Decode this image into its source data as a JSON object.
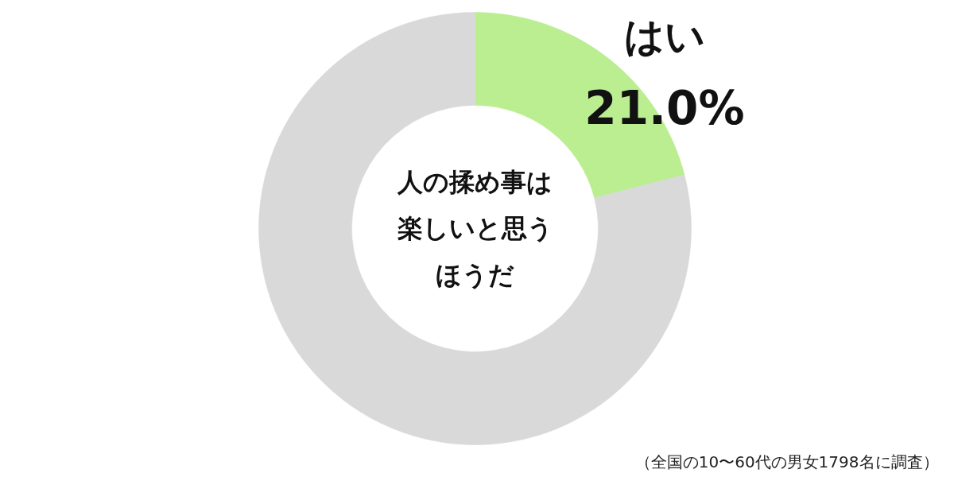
{
  "chart_data": {
    "type": "donut",
    "title": "人の揉め事は楽しいと思うほうだ",
    "categories": [
      "はい",
      null
    ],
    "values": [
      21.0,
      79.0
    ],
    "colors": [
      "#bbed91",
      "#d9d9d9"
    ],
    "value_labels": [
      "21.0%",
      null
    ],
    "annotations": [
      "（全国の10〜60代の男女1798名に調査）"
    ]
  }
}
